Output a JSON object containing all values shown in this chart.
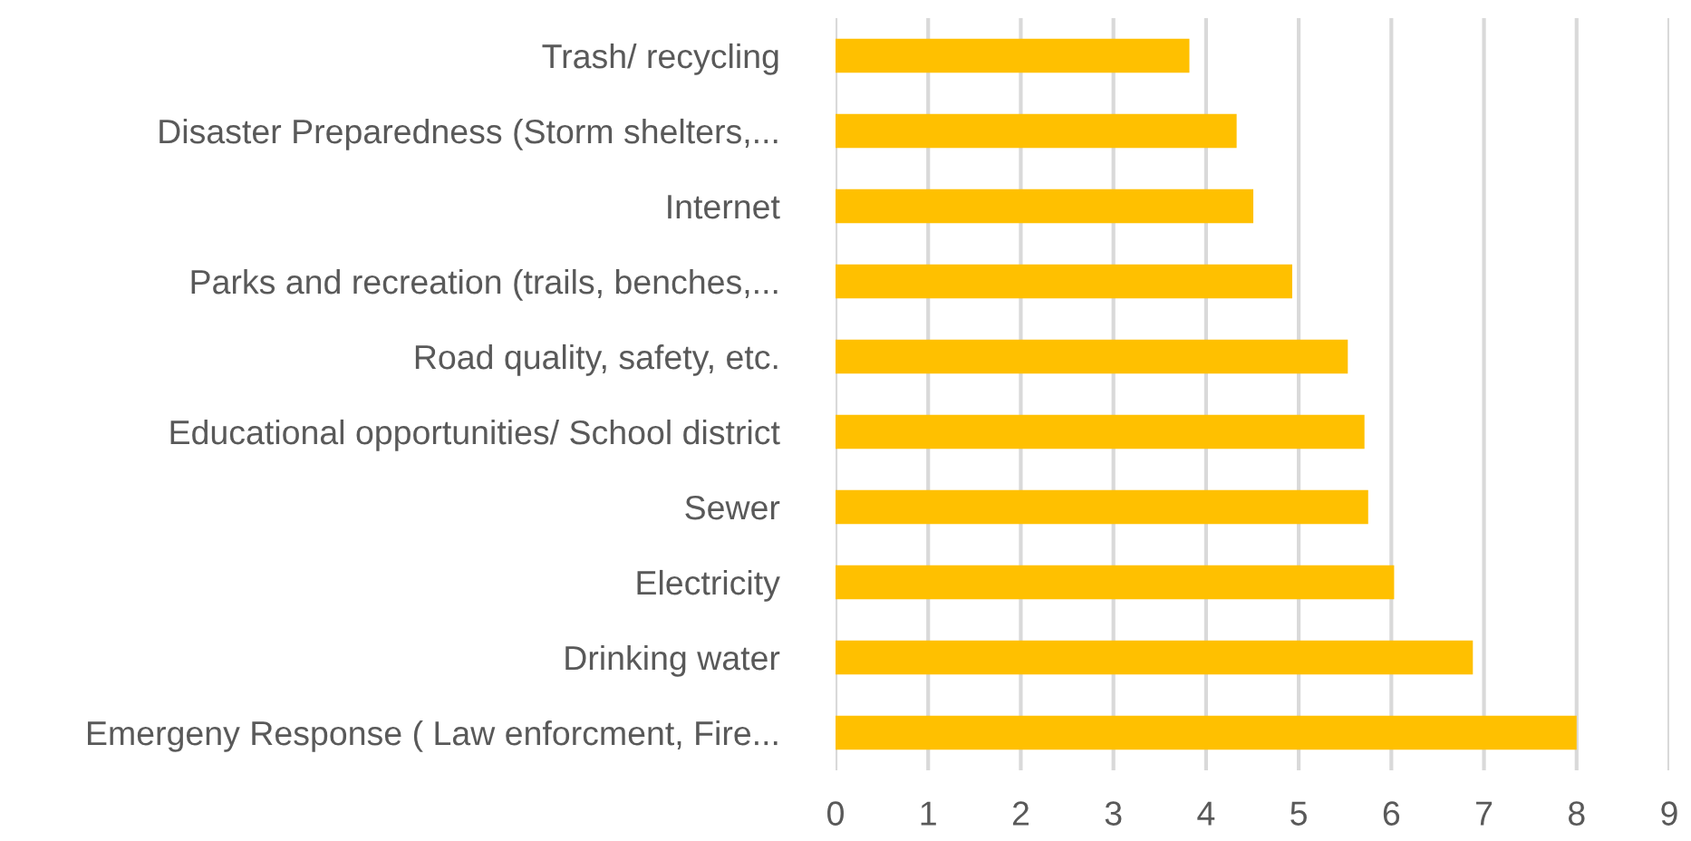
{
  "chart_data": {
    "type": "bar",
    "orientation": "horizontal",
    "categories": [
      "Trash/ recycling",
      "Disaster Preparedness (Storm shelters,...",
      "Internet",
      "Parks and recreation (trails, benches,...",
      "Road quality, safety, etc.",
      "Educational opportunities/ School district",
      "Sewer",
      "Electricity",
      "Drinking water",
      "Emergeny Response ( Law enforcment, Fire..."
    ],
    "values": [
      3.82,
      4.33,
      4.51,
      4.93,
      5.53,
      5.71,
      5.75,
      6.03,
      6.88,
      8.0
    ],
    "color": "#ffc000",
    "xlim": [
      0,
      9
    ],
    "xticks": [
      0,
      1,
      2,
      3,
      4,
      5,
      6,
      7,
      8,
      9
    ],
    "grid": "x"
  }
}
